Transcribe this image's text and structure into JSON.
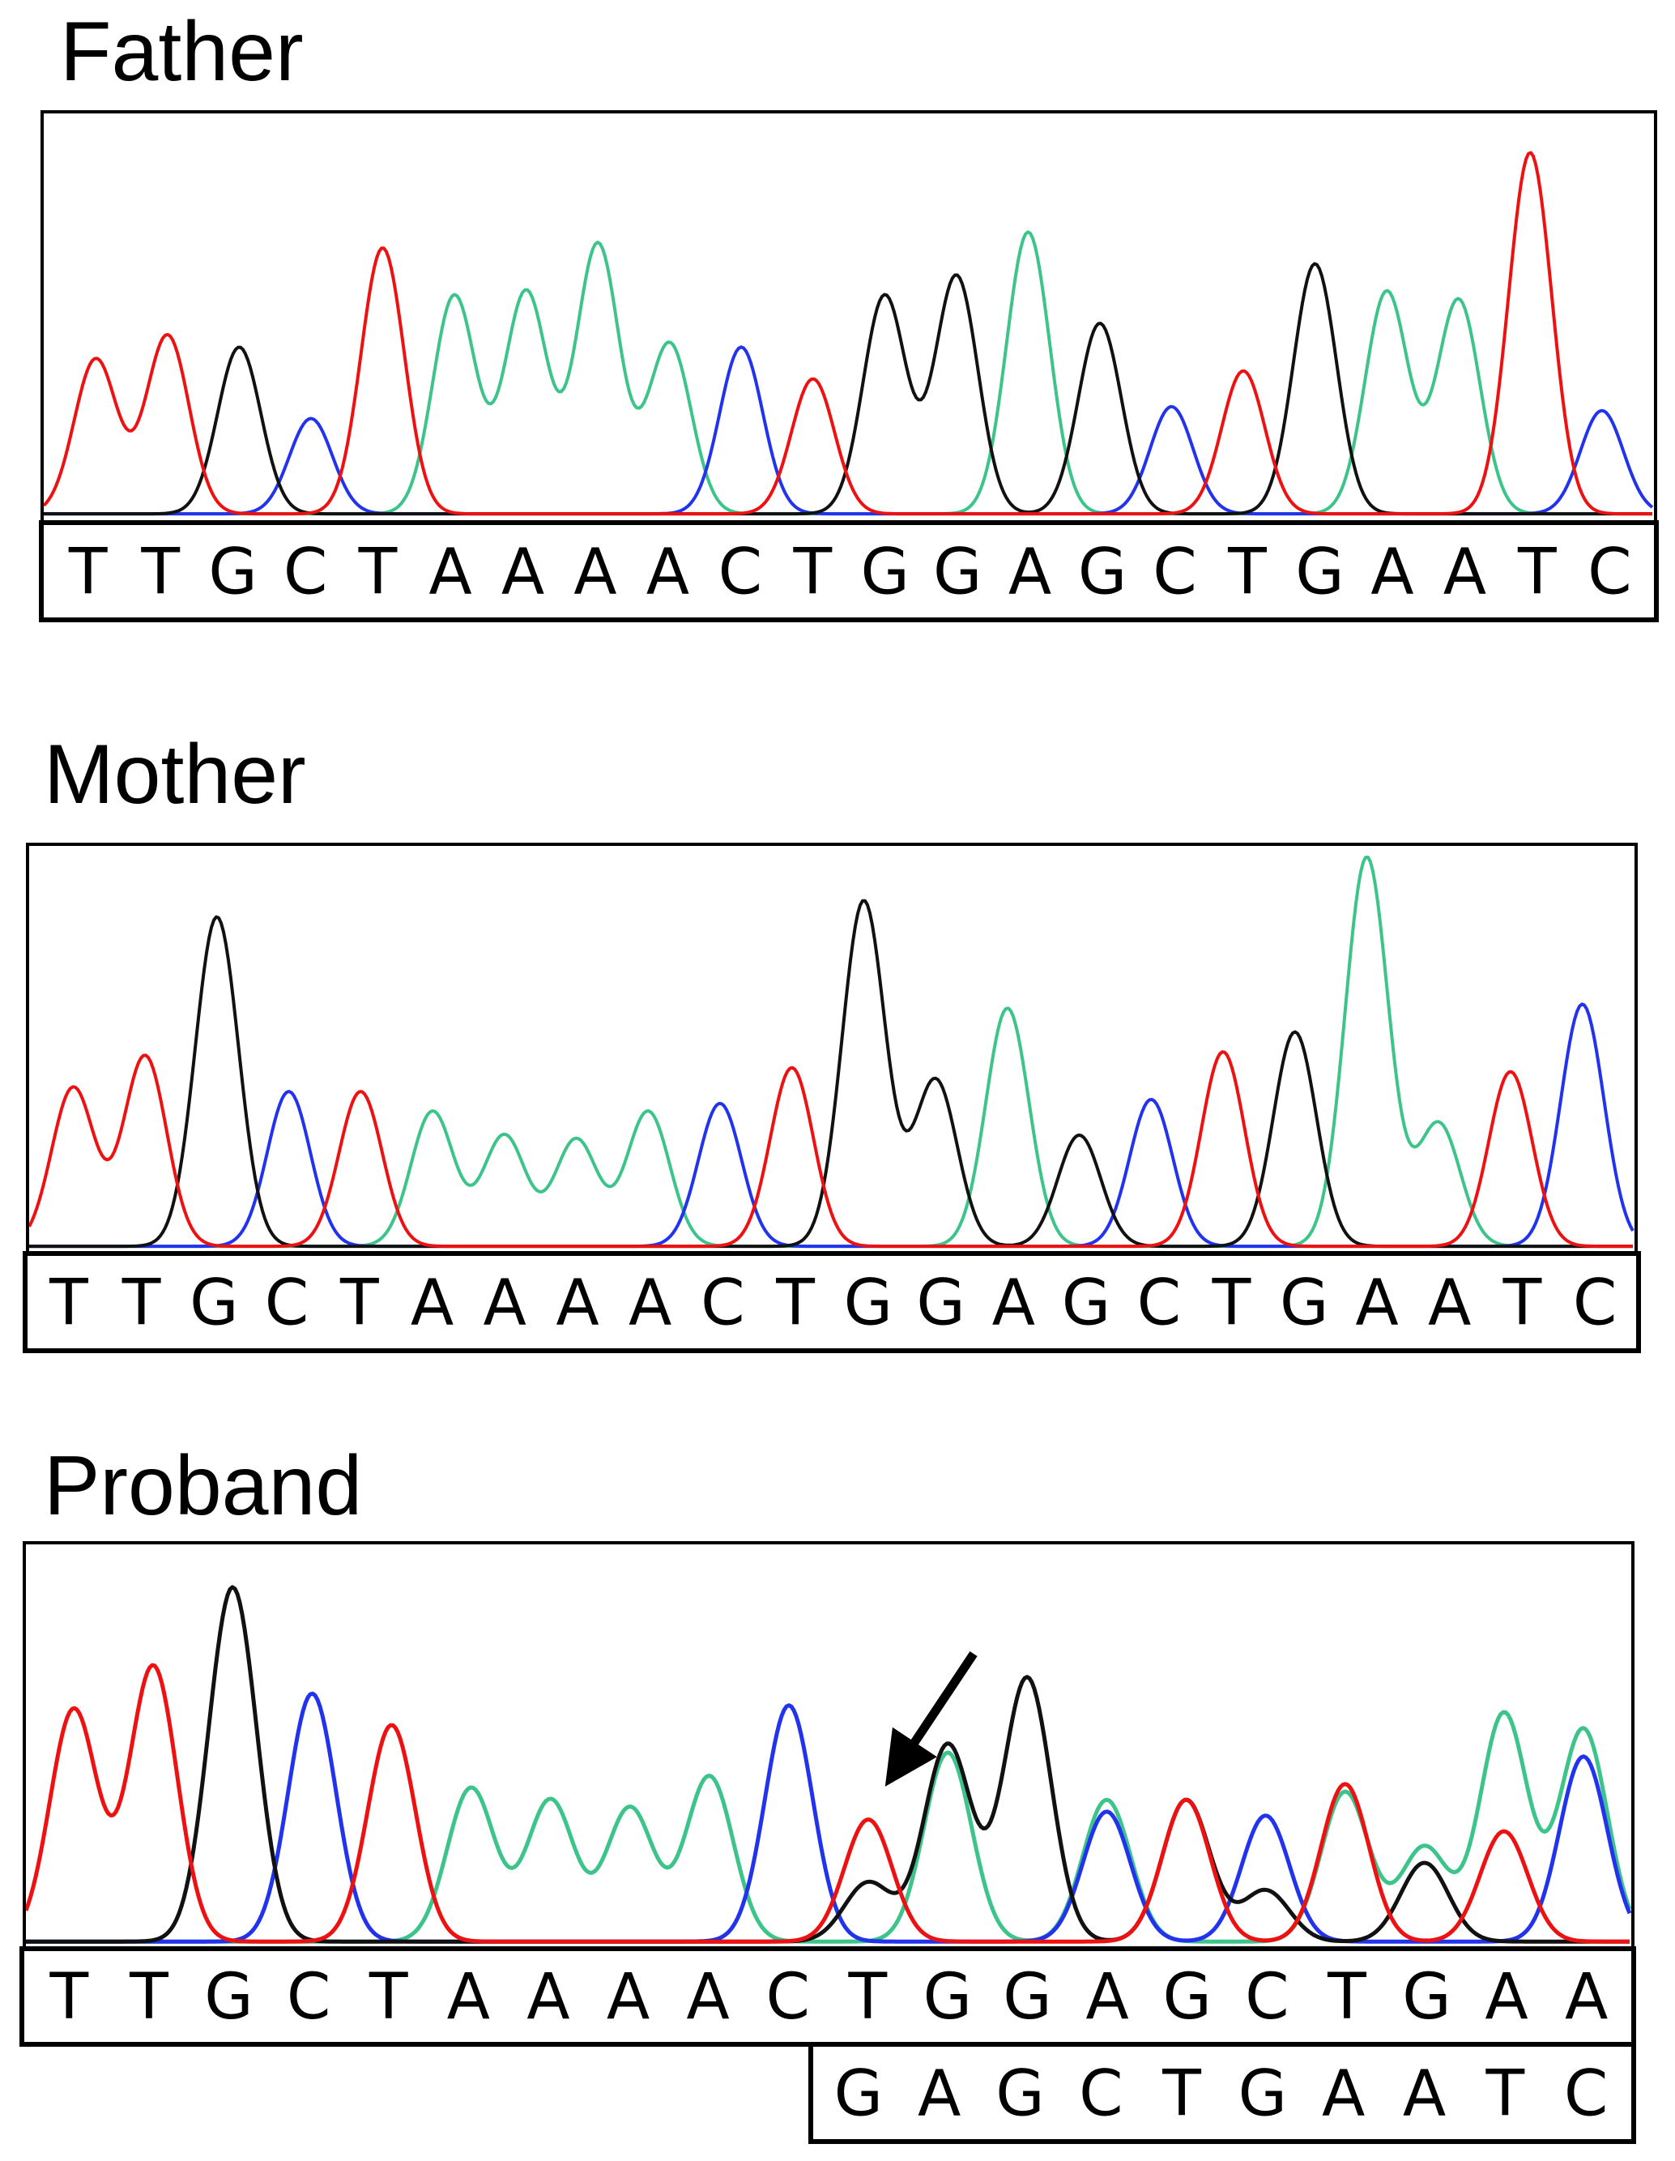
{
  "panels": [
    {
      "id": "father",
      "title": "Father",
      "reads": [
        [
          "T",
          "T",
          "G",
          "C",
          "T",
          "A",
          "A",
          "A",
          "A",
          "C",
          "T",
          "G",
          "G",
          "A",
          "G",
          "C",
          "T",
          "G",
          "A",
          "A",
          "T",
          "C"
        ]
      ],
      "peaks": [
        {
          "base": "T",
          "h": 0.39
        },
        {
          "base": "T",
          "h": 0.45
        },
        {
          "base": "G",
          "h": 0.42
        },
        {
          "base": "C",
          "h": 0.24
        },
        {
          "base": "T",
          "h": 0.67
        },
        {
          "base": "A",
          "h": 0.55
        },
        {
          "base": "A",
          "h": 0.56
        },
        {
          "base": "A",
          "h": 0.68
        },
        {
          "base": "A",
          "h": 0.43
        },
        {
          "base": "C",
          "h": 0.42
        },
        {
          "base": "T",
          "h": 0.34
        },
        {
          "base": "G",
          "h": 0.55
        },
        {
          "base": "G",
          "h": 0.6
        },
        {
          "base": "A",
          "h": 0.71
        },
        {
          "base": "G",
          "h": 0.48
        },
        {
          "base": "C",
          "h": 0.27
        },
        {
          "base": "T",
          "h": 0.36
        },
        {
          "base": "G",
          "h": 0.63
        },
        {
          "base": "A",
          "h": 0.56
        },
        {
          "base": "A",
          "h": 0.54
        },
        {
          "base": "T",
          "h": 0.91
        },
        {
          "base": "C",
          "h": 0.26
        }
      ]
    },
    {
      "id": "mother",
      "title": "Mother",
      "reads": [
        [
          "T",
          "T",
          "G",
          "C",
          "T",
          "A",
          "A",
          "A",
          "A",
          "C",
          "T",
          "G",
          "G",
          "A",
          "G",
          "C",
          "T",
          "G",
          "A",
          "A",
          "T",
          "C"
        ]
      ],
      "peaks": [
        {
          "base": "T",
          "h": 0.4
        },
        {
          "base": "T",
          "h": 0.48
        },
        {
          "base": "G",
          "h": 0.83
        },
        {
          "base": "C",
          "h": 0.39
        },
        {
          "base": "T",
          "h": 0.39
        },
        {
          "base": "A",
          "h": 0.34
        },
        {
          "base": "A",
          "h": 0.28
        },
        {
          "base": "A",
          "h": 0.27
        },
        {
          "base": "A",
          "h": 0.34
        },
        {
          "base": "C",
          "h": 0.36
        },
        {
          "base": "T",
          "h": 0.45
        },
        {
          "base": "G",
          "h": 0.87
        },
        {
          "base": "G",
          "h": 0.42
        },
        {
          "base": "A",
          "h": 0.6
        },
        {
          "base": "G",
          "h": 0.28
        },
        {
          "base": "C",
          "h": 0.37
        },
        {
          "base": "T",
          "h": 0.49
        },
        {
          "base": "G",
          "h": 0.54
        },
        {
          "base": "A",
          "h": 0.98
        },
        {
          "base": "A",
          "h": 0.31
        },
        {
          "base": "T",
          "h": 0.44
        },
        {
          "base": "C",
          "h": 0.61
        }
      ]
    },
    {
      "id": "proband",
      "title": "Proband",
      "reads": [
        [
          "T",
          "T",
          "G",
          "C",
          "T",
          "A",
          "A",
          "A",
          "A",
          "C",
          "T",
          "G",
          "G",
          "A",
          "G",
          "C",
          "T",
          "G",
          "A",
          "A"
        ],
        [
          "G",
          "A",
          "G",
          "C",
          "T",
          "G",
          "A",
          "A",
          "T",
          "C"
        ]
      ],
      "peaks": [
        {
          "base": "T",
          "h": 0.59
        },
        {
          "base": "T",
          "h": 0.7
        },
        {
          "base": "G",
          "h": 0.9
        },
        {
          "base": "C",
          "h": 0.63
        },
        {
          "base": "T",
          "h": 0.55
        },
        {
          "base": "A",
          "h": 0.39
        },
        {
          "base": "A",
          "h": 0.36
        },
        {
          "base": "A",
          "h": 0.34
        },
        {
          "base": "A",
          "h": 0.42
        },
        {
          "base": "C",
          "h": 0.6
        },
        {
          "base": "T",
          "h": 0.31,
          "second": {
            "base": "G",
            "h": 0.15
          }
        },
        {
          "base": "G",
          "h": 0.5,
          "second": {
            "base": "A",
            "h": 0.48
          }
        },
        {
          "base": "G",
          "h": 0.34,
          "second": {
            "base": "G",
            "h": 0.33
          }
        },
        {
          "base": "A",
          "h": 0.36,
          "second": {
            "base": "C",
            "h": 0.33
          }
        },
        {
          "base": "G",
          "h": 0.36,
          "second": {
            "base": "T",
            "h": 0.36
          }
        },
        {
          "base": "C",
          "h": 0.32,
          "second": {
            "base": "G",
            "h": 0.13
          }
        },
        {
          "base": "T",
          "h": 0.4,
          "second": {
            "base": "A",
            "h": 0.38
          }
        },
        {
          "base": "G",
          "h": 0.2,
          "second": {
            "base": "A",
            "h": 0.24
          }
        },
        {
          "base": "A",
          "h": 0.58,
          "second": {
            "base": "T",
            "h": 0.28
          }
        },
        {
          "base": "A",
          "h": 0.54,
          "second": {
            "base": "C",
            "h": 0.47
          }
        }
      ],
      "arrow_at_peak": 10
    }
  ],
  "base_colors": {
    "A": "#3cc48a",
    "C": "#2233ee",
    "G": "#111111",
    "T": "#ee1111"
  }
}
